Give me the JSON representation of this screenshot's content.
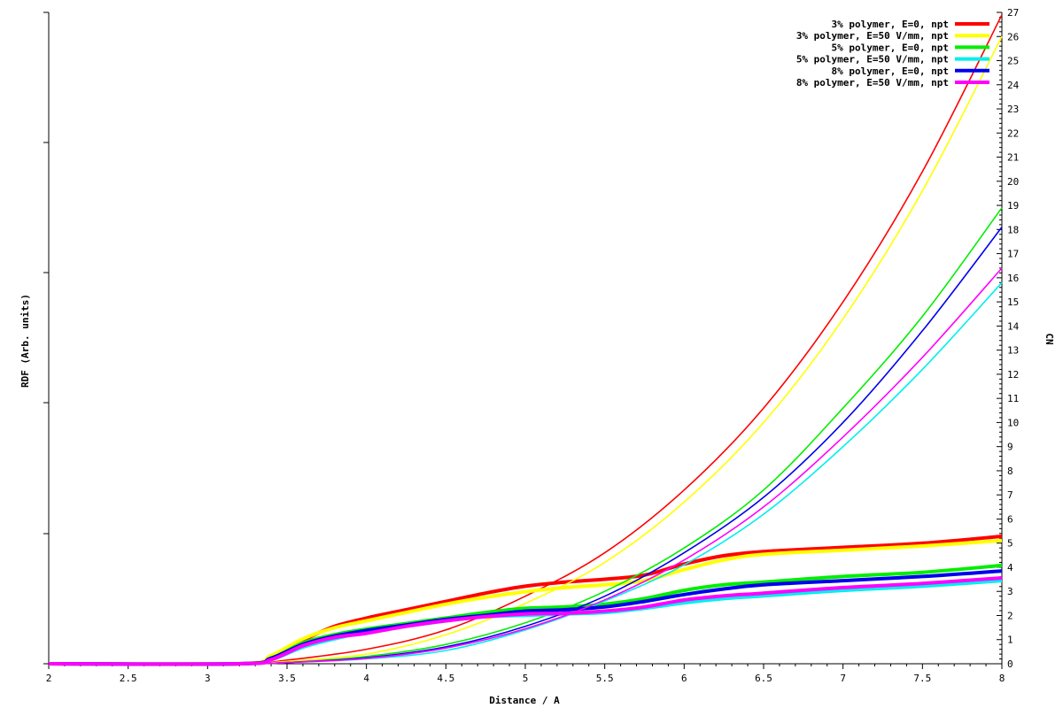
{
  "chart_data": {
    "type": "line",
    "xlabel": "Distance / A",
    "ylabel_left": "RDF (Arb. units)",
    "ylabel_right": "CN",
    "xlim": [
      2,
      8
    ],
    "ylim_right": [
      0,
      27
    ],
    "x_ticks": [
      2,
      2.5,
      3,
      3.5,
      4,
      4.5,
      5,
      5.5,
      6,
      6.5,
      7,
      7.5,
      8
    ],
    "x_tick_labels": [
      "2",
      "2.5",
      "3",
      "3.5",
      "4",
      "4.5",
      "5",
      "5.5",
      "6",
      "6.5",
      "7",
      "7.5",
      "8"
    ],
    "y_right_ticks": [
      0,
      1,
      2,
      3,
      4,
      5,
      6,
      7,
      8,
      9,
      10,
      11,
      12,
      13,
      14,
      15,
      16,
      17,
      18,
      19,
      20,
      21,
      22,
      23,
      24,
      25,
      26,
      27
    ],
    "y_right_tick_labels": [
      "0",
      "1",
      "2",
      "3",
      "4",
      "5",
      "6",
      "7",
      "8",
      "9",
      "10",
      "11",
      "12",
      "13",
      "14",
      "15",
      "16",
      "17",
      "18",
      "19",
      "20",
      "21",
      "22",
      "23",
      "24",
      "25",
      "26",
      "27"
    ],
    "legend_position": "top-right",
    "grid": false,
    "series": [
      {
        "name": "3% polymer, E=0, npt",
        "color": "#ff0000",
        "rdf": [
          [
            2,
            0
          ],
          [
            3.2,
            0
          ],
          [
            3.4,
            0.25
          ],
          [
            3.6,
            0.85
          ],
          [
            3.8,
            1.35
          ],
          [
            4,
            1.65
          ],
          [
            4.25,
            1.95
          ],
          [
            4.5,
            2.25
          ],
          [
            4.75,
            2.55
          ],
          [
            5,
            2.8
          ],
          [
            5.25,
            2.95
          ],
          [
            5.5,
            3.05
          ],
          [
            5.75,
            3.2
          ],
          [
            6,
            3.6
          ],
          [
            6.25,
            3.9
          ],
          [
            6.5,
            4.05
          ],
          [
            7,
            4.2
          ],
          [
            7.5,
            4.35
          ],
          [
            8,
            4.6
          ]
        ],
        "cn": [
          [
            2,
            0
          ],
          [
            3.2,
            0
          ],
          [
            3.5,
            0.15
          ],
          [
            4,
            0.6
          ],
          [
            4.5,
            1.4
          ],
          [
            5,
            2.8
          ],
          [
            5.5,
            4.6
          ],
          [
            6,
            7.2
          ],
          [
            6.5,
            10.6
          ],
          [
            7,
            15.0
          ],
          [
            7.5,
            20.4
          ],
          [
            8,
            26.9
          ]
        ]
      },
      {
        "name": "3% polymer, E=50 V/mm, npt",
        "color": "#ffff00",
        "rdf": [
          [
            2,
            0
          ],
          [
            3.2,
            0
          ],
          [
            3.4,
            0.3
          ],
          [
            3.6,
            0.9
          ],
          [
            3.8,
            1.3
          ],
          [
            4,
            1.55
          ],
          [
            4.25,
            1.85
          ],
          [
            4.5,
            2.15
          ],
          [
            4.75,
            2.4
          ],
          [
            5,
            2.6
          ],
          [
            5.25,
            2.75
          ],
          [
            5.5,
            2.85
          ],
          [
            5.75,
            3.0
          ],
          [
            6,
            3.4
          ],
          [
            6.25,
            3.75
          ],
          [
            6.5,
            3.95
          ],
          [
            7,
            4.1
          ],
          [
            7.5,
            4.25
          ],
          [
            8,
            4.45
          ]
        ],
        "cn": [
          [
            2,
            0
          ],
          [
            3.2,
            0
          ],
          [
            3.5,
            0.1
          ],
          [
            4,
            0.4
          ],
          [
            4.5,
            1.2
          ],
          [
            5,
            2.5
          ],
          [
            5.5,
            4.2
          ],
          [
            6,
            6.7
          ],
          [
            6.5,
            10.0
          ],
          [
            7,
            14.3
          ],
          [
            7.5,
            19.6
          ],
          [
            8,
            26.0
          ]
        ]
      },
      {
        "name": "5% polymer, E=0, npt",
        "color": "#00ee00",
        "rdf": [
          [
            2,
            0
          ],
          [
            3.2,
            0
          ],
          [
            3.4,
            0.2
          ],
          [
            3.6,
            0.75
          ],
          [
            3.8,
            1.05
          ],
          [
            4,
            1.25
          ],
          [
            4.25,
            1.45
          ],
          [
            4.5,
            1.65
          ],
          [
            4.75,
            1.85
          ],
          [
            5,
            2.0
          ],
          [
            5.25,
            2.05
          ],
          [
            5.5,
            2.15
          ],
          [
            5.75,
            2.35
          ],
          [
            6,
            2.65
          ],
          [
            6.25,
            2.85
          ],
          [
            6.5,
            2.95
          ],
          [
            7,
            3.15
          ],
          [
            7.5,
            3.3
          ],
          [
            8,
            3.55
          ]
        ],
        "cn": [
          [
            2,
            0
          ],
          [
            3.2,
            0
          ],
          [
            3.5,
            0.05
          ],
          [
            4,
            0.3
          ],
          [
            4.5,
            0.8
          ],
          [
            5,
            1.7
          ],
          [
            5.5,
            3.0
          ],
          [
            6,
            4.8
          ],
          [
            6.5,
            7.2
          ],
          [
            7,
            10.6
          ],
          [
            7.5,
            14.4
          ],
          [
            8,
            18.9
          ]
        ]
      },
      {
        "name": "5% polymer, E=50 V/mm, npt",
        "color": "#00eeee",
        "rdf": [
          [
            2,
            0
          ],
          [
            3.2,
            0
          ],
          [
            3.4,
            0.15
          ],
          [
            3.6,
            0.6
          ],
          [
            3.8,
            0.9
          ],
          [
            4,
            1.15
          ],
          [
            4.25,
            1.35
          ],
          [
            4.5,
            1.55
          ],
          [
            4.75,
            1.7
          ],
          [
            5,
            1.75
          ],
          [
            5.25,
            1.8
          ],
          [
            5.5,
            1.85
          ],
          [
            5.75,
            2.0
          ],
          [
            6,
            2.2
          ],
          [
            6.25,
            2.35
          ],
          [
            6.5,
            2.45
          ],
          [
            7,
            2.65
          ],
          [
            7.5,
            2.8
          ],
          [
            8,
            3.0
          ]
        ],
        "cn": [
          [
            2,
            0
          ],
          [
            3.2,
            0
          ],
          [
            3.5,
            0.05
          ],
          [
            4,
            0.2
          ],
          [
            4.5,
            0.55
          ],
          [
            5,
            1.4
          ],
          [
            5.5,
            2.6
          ],
          [
            6,
            4.1
          ],
          [
            6.5,
            6.2
          ],
          [
            7,
            9.0
          ],
          [
            7.5,
            12.2
          ],
          [
            8,
            15.8
          ]
        ]
      },
      {
        "name": "8% polymer, E=0, npt",
        "color": "#0000ee",
        "rdf": [
          [
            2,
            0
          ],
          [
            3.2,
            0
          ],
          [
            3.4,
            0.2
          ],
          [
            3.6,
            0.7
          ],
          [
            3.8,
            1.0
          ],
          [
            4,
            1.2
          ],
          [
            4.25,
            1.4
          ],
          [
            4.5,
            1.6
          ],
          [
            4.75,
            1.75
          ],
          [
            5,
            1.9
          ],
          [
            5.25,
            1.95
          ],
          [
            5.5,
            2.05
          ],
          [
            5.75,
            2.25
          ],
          [
            6,
            2.5
          ],
          [
            6.25,
            2.7
          ],
          [
            6.5,
            2.85
          ],
          [
            7,
            3.0
          ],
          [
            7.5,
            3.15
          ],
          [
            8,
            3.35
          ]
        ],
        "cn": [
          [
            2,
            0
          ],
          [
            3.2,
            0
          ],
          [
            3.5,
            0.05
          ],
          [
            4,
            0.25
          ],
          [
            4.5,
            0.7
          ],
          [
            5,
            1.55
          ],
          [
            5.5,
            2.8
          ],
          [
            6,
            4.6
          ],
          [
            6.5,
            6.9
          ],
          [
            7,
            10.0
          ],
          [
            7.5,
            13.8
          ],
          [
            8,
            18.1
          ]
        ]
      },
      {
        "name": "8% polymer, E=50 V/mm, npt",
        "color": "#ff00ff",
        "rdf": [
          [
            2,
            0
          ],
          [
            3.2,
            0
          ],
          [
            3.4,
            0.15
          ],
          [
            3.6,
            0.65
          ],
          [
            3.8,
            0.95
          ],
          [
            4,
            1.1
          ],
          [
            4.25,
            1.35
          ],
          [
            4.5,
            1.55
          ],
          [
            4.75,
            1.7
          ],
          [
            5,
            1.8
          ],
          [
            5.25,
            1.82
          ],
          [
            5.5,
            1.9
          ],
          [
            5.75,
            2.05
          ],
          [
            6,
            2.3
          ],
          [
            6.25,
            2.45
          ],
          [
            6.5,
            2.55
          ],
          [
            7,
            2.75
          ],
          [
            7.5,
            2.9
          ],
          [
            8,
            3.1
          ]
        ],
        "cn": [
          [
            2,
            0
          ],
          [
            3.2,
            0
          ],
          [
            3.5,
            0.05
          ],
          [
            4,
            0.22
          ],
          [
            4.5,
            0.65
          ],
          [
            5,
            1.45
          ],
          [
            5.5,
            2.65
          ],
          [
            6,
            4.3
          ],
          [
            6.5,
            6.5
          ],
          [
            7,
            9.4
          ],
          [
            7.5,
            12.7
          ],
          [
            8,
            16.4
          ]
        ]
      }
    ]
  }
}
